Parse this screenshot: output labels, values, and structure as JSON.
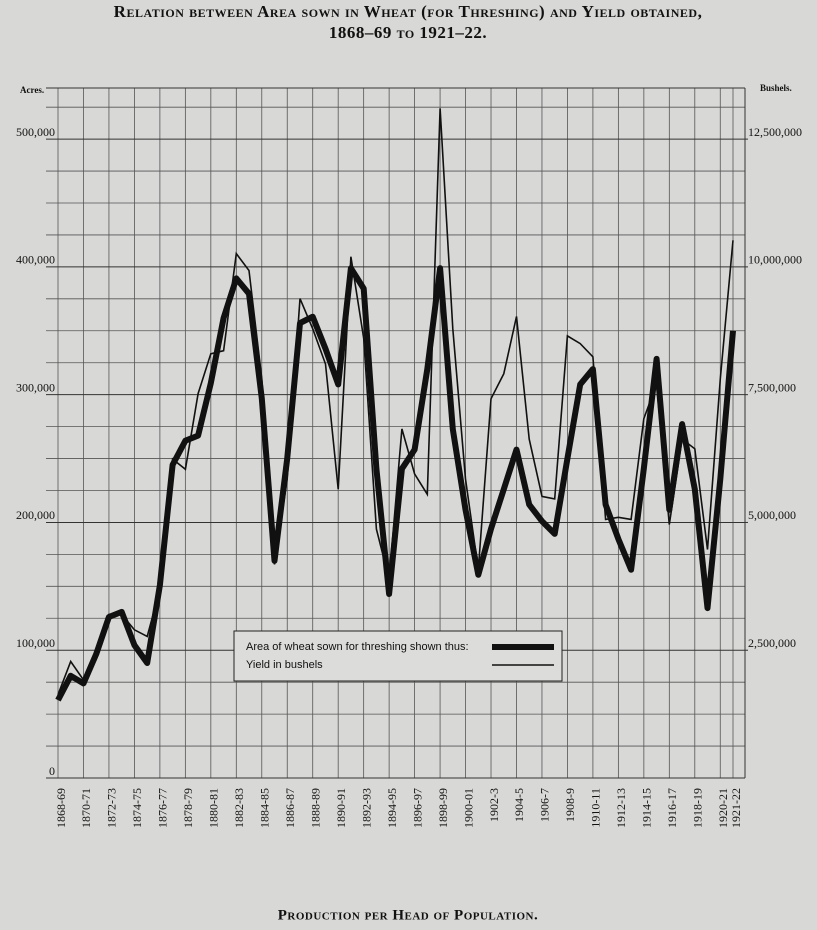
{
  "chart_data": {
    "type": "line",
    "title": "Relation between Area sown in Wheat (for Threshing) and Yield obtained,",
    "subtitle": "1868–69 to 1921–22.",
    "caption": "Production per Head of Population.",
    "y_label": "Acres.",
    "y2_label": "Bushels.",
    "categories": [
      "1868-69",
      null,
      "1870-71",
      null,
      "1872-73",
      null,
      "1874-75",
      null,
      "1876-77",
      null,
      "1878-79",
      null,
      "1880-81",
      null,
      "1882-83",
      null,
      "1884-85",
      null,
      "1886-87",
      null,
      "1888-89",
      null,
      "1890-91",
      null,
      "1892-93",
      null,
      "1894-95",
      null,
      "1896-97",
      null,
      "1898-99",
      null,
      "1900-01",
      null,
      "1902-3",
      null,
      "1904-5",
      null,
      "1906-7",
      null,
      "1908-9",
      null,
      "1910-11",
      null,
      "1912-13",
      null,
      "1914-15",
      null,
      "1916-17",
      null,
      "1918-19",
      null,
      "1920-21",
      "1921-22"
    ],
    "series": [
      {
        "name": "Area of wheat sown for threshing shown thus:",
        "color": "#111111",
        "axis": "y",
        "values": [
          61000,
          80000,
          74000,
          97000,
          126000,
          130000,
          104000,
          90000,
          151000,
          245000,
          264000,
          268000,
          309000,
          360000,
          391000,
          379000,
          297000,
          170000,
          250000,
          356000,
          361000,
          336000,
          308000,
          399000,
          383000,
          242000,
          144000,
          242000,
          257000,
          320000,
          399000,
          273000,
          210000,
          159000,
          195000,
          226000,
          257000,
          214000,
          201000,
          191000,
          250000,
          308000,
          320000,
          214000,
          187000,
          163000,
          242000,
          328000,
          210000,
          277000,
          226000,
          133000,
          234000,
          350000
        ]
      },
      {
        "name": "Yield in bushels",
        "color": "#111111",
        "axis": "y2",
        "values": [
          1630000,
          2280000,
          1920000,
          2320000,
          3200000,
          3200000,
          2900000,
          2770000,
          3690000,
          6240000,
          6040000,
          7520000,
          8300000,
          8360000,
          10260000,
          9930000,
          7810000,
          4180000,
          5850000,
          9380000,
          8790000,
          8100000,
          5650000,
          10200000,
          8600000,
          4870000,
          3890000,
          6830000,
          5950000,
          5550000,
          13100000,
          8790000,
          5850000,
          4080000,
          7420000,
          7910000,
          9030000,
          6630000,
          5510000,
          5460000,
          8650000,
          8500000,
          8240000,
          5060000,
          5100000,
          5060000,
          7030000,
          7710000,
          4960000,
          6630000,
          6440000,
          4470000,
          7810000,
          10520000
        ]
      }
    ],
    "ylim": [
      0,
      540000
    ],
    "yticks": [
      0,
      {
        "value": 100000,
        "label": "100,000"
      },
      {
        "value": 200000,
        "label": "200,000"
      },
      {
        "value": 300000,
        "label": "300,000"
      },
      {
        "value": 400000,
        "label": "400,000"
      },
      {
        "value": 500000,
        "label": "500,000"
      }
    ],
    "y2lim": [
      0,
      13500000
    ],
    "y2ticks": [
      {
        "value": 2500000,
        "label": "2,500,000"
      },
      {
        "value": 5000000,
        "label": "5,000,000"
      },
      {
        "value": 7500000,
        "label": "7,500,000"
      },
      {
        "value": 10000000,
        "label": "10,000,000"
      },
      {
        "value": 12500000,
        "label": "12,500,000"
      }
    ],
    "grid": true,
    "legend_position": "lower center"
  }
}
